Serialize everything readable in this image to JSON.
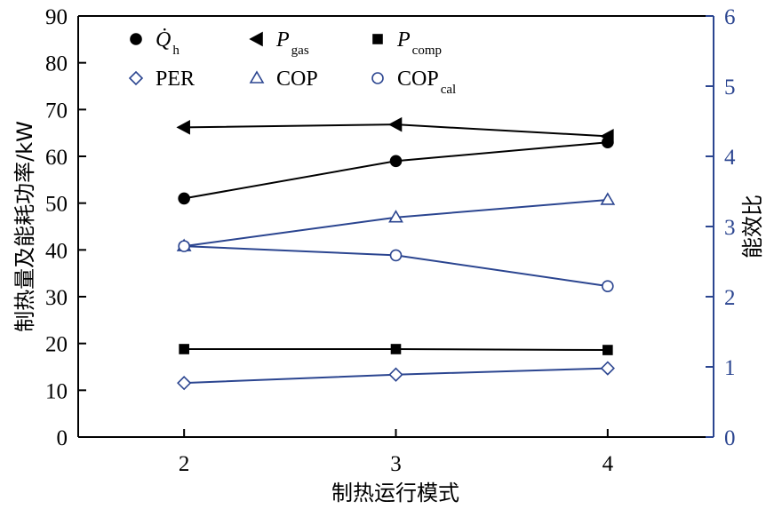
{
  "chart_data": {
    "type": "line",
    "xlabel": "制热运行模式",
    "ylabel": "制热量及能耗功率/kW",
    "y2label": "能效比",
    "x": [
      2,
      3,
      4
    ],
    "xticks": [
      "2",
      "3",
      "4"
    ],
    "xlim": [
      1.5,
      4.5
    ],
    "ylim": [
      0,
      90
    ],
    "y2lim": [
      0,
      6
    ],
    "yticks": [
      "0",
      "10",
      "20",
      "30",
      "40",
      "50",
      "60",
      "70",
      "80",
      "90"
    ],
    "y2ticks": [
      "0",
      "1",
      "2",
      "3",
      "4",
      "5",
      "6"
    ],
    "legend_position": "top-left",
    "colors": {
      "black_series": "#000000",
      "blue_series": "#2b4590"
    },
    "series": [
      {
        "name": "Q̇h",
        "axis": "left",
        "marker": "circle-filled",
        "color": "#000000",
        "values": [
          51.0,
          59.0,
          63.0
        ]
      },
      {
        "name": "Pgas",
        "axis": "left",
        "marker": "triangle-left-filled",
        "color": "#000000",
        "values": [
          66.2,
          66.8,
          64.3
        ]
      },
      {
        "name": "Pcomp",
        "axis": "left",
        "marker": "square-filled",
        "color": "#000000",
        "values": [
          18.8,
          18.8,
          18.6
        ]
      },
      {
        "name": "PER",
        "axis": "right",
        "marker": "diamond-open",
        "color": "#2b4590",
        "values": [
          0.77,
          0.89,
          0.98
        ]
      },
      {
        "name": "COP",
        "axis": "right",
        "marker": "triangle-up-open",
        "color": "#2b4590",
        "values": [
          2.72,
          3.13,
          3.38
        ]
      },
      {
        "name": "COPcal",
        "axis": "right",
        "marker": "circle-open",
        "color": "#2b4590",
        "values": [
          2.72,
          2.59,
          2.15
        ]
      }
    ],
    "legend": [
      {
        "main": "Q̇",
        "sub": "h"
      },
      {
        "main": "P",
        "sub": "gas"
      },
      {
        "main": "P",
        "sub": "comp"
      },
      {
        "main": "PER",
        "sub": ""
      },
      {
        "main": "COP",
        "sub": ""
      },
      {
        "main": "COP",
        "sub": "cal"
      }
    ]
  }
}
